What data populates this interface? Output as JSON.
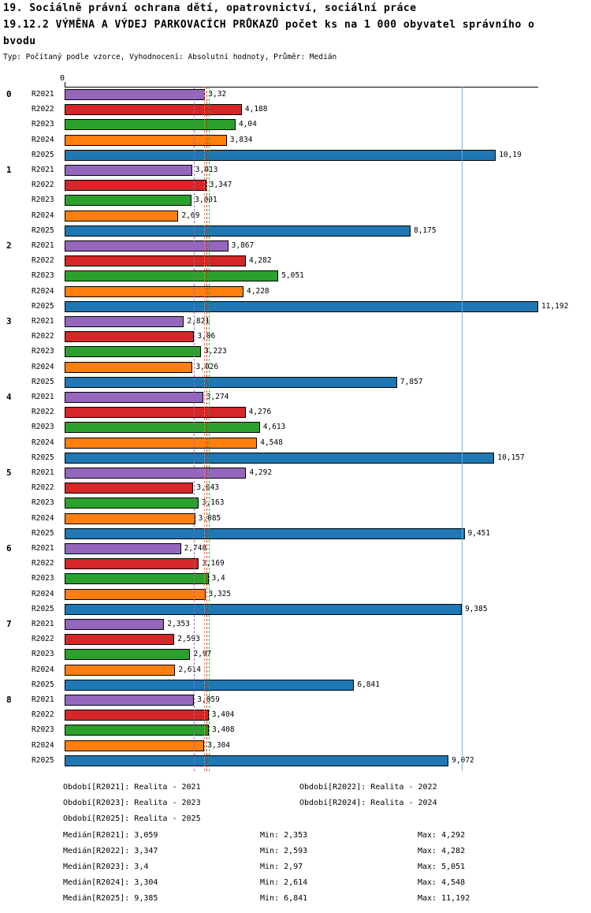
{
  "header": {
    "line1": "19. Sociálně právní ochrana dětí, opatrovnictví, sociální práce",
    "line2": "19.12.2 VÝMĚNA A VÝDEJ PARKOVACÍCH PRŮKAZŮ počet ks na 1 000 obyvatel správního o",
    "line3": "bvodu",
    "meta": "Typ: Počítaný podle vzorce, Vyhodnocení: Absolutní hodnoty, Průměr: Medián"
  },
  "chart_data": {
    "type": "bar",
    "orientation": "horizontal",
    "xlim": [
      0,
      11.192
    ],
    "x_axis": {
      "origin_label": "0"
    },
    "series": [
      "R2021",
      "R2022",
      "R2023",
      "R2024",
      "R2025"
    ],
    "colors": {
      "R2021": "#9467bd",
      "R2022": "#d62728",
      "R2023": "#2ca02c",
      "R2024": "#ff7f0e",
      "R2025": "#1f77b4"
    },
    "groups": [
      {
        "category": "0",
        "bars": [
          {
            "series": "R2021",
            "value": 3.32,
            "label": "3,32"
          },
          {
            "series": "R2022",
            "value": 4.188,
            "label": "4,188"
          },
          {
            "series": "R2023",
            "value": 4.04,
            "label": "4,04"
          },
          {
            "series": "R2024",
            "value": 3.834,
            "label": "3,834"
          },
          {
            "series": "R2025",
            "value": 10.19,
            "label": "10,19"
          }
        ]
      },
      {
        "category": "1",
        "bars": [
          {
            "series": "R2021",
            "value": 3.013,
            "label": "3,013"
          },
          {
            "series": "R2022",
            "value": 3.347,
            "label": "3,347"
          },
          {
            "series": "R2023",
            "value": 3.001,
            "label": "3,001"
          },
          {
            "series": "R2024",
            "value": 2.69,
            "label": "2,69"
          },
          {
            "series": "R2025",
            "value": 8.175,
            "label": "8,175"
          }
        ]
      },
      {
        "category": "2",
        "bars": [
          {
            "series": "R2021",
            "value": 3.867,
            "label": "3,867"
          },
          {
            "series": "R2022",
            "value": 4.282,
            "label": "4,282"
          },
          {
            "series": "R2023",
            "value": 5.051,
            "label": "5,051"
          },
          {
            "series": "R2024",
            "value": 4.228,
            "label": "4,228"
          },
          {
            "series": "R2025",
            "value": 11.192,
            "label": "11,192"
          }
        ]
      },
      {
        "category": "3",
        "bars": [
          {
            "series": "R2021",
            "value": 2.821,
            "label": "2,821"
          },
          {
            "series": "R2022",
            "value": 3.06,
            "label": "3,06"
          },
          {
            "series": "R2023",
            "value": 3.223,
            "label": "3,223"
          },
          {
            "series": "R2024",
            "value": 3.026,
            "label": "3,026"
          },
          {
            "series": "R2025",
            "value": 7.857,
            "label": "7,857"
          }
        ]
      },
      {
        "category": "4",
        "bars": [
          {
            "series": "R2021",
            "value": 3.274,
            "label": "3,274"
          },
          {
            "series": "R2022",
            "value": 4.276,
            "label": "4,276"
          },
          {
            "series": "R2023",
            "value": 4.613,
            "label": "4,613"
          },
          {
            "series": "R2024",
            "value": 4.548,
            "label": "4,548"
          },
          {
            "series": "R2025",
            "value": 10.157,
            "label": "10,157"
          }
        ]
      },
      {
        "category": "5",
        "bars": [
          {
            "series": "R2021",
            "value": 4.292,
            "label": "4,292"
          },
          {
            "series": "R2022",
            "value": 3.043,
            "label": "3,043"
          },
          {
            "series": "R2023",
            "value": 3.163,
            "label": "3,163"
          },
          {
            "series": "R2024",
            "value": 3.085,
            "label": "3,085"
          },
          {
            "series": "R2025",
            "value": 9.451,
            "label": "9,451"
          }
        ]
      },
      {
        "category": "6",
        "bars": [
          {
            "series": "R2021",
            "value": 2.748,
            "label": "2,748"
          },
          {
            "series": "R2022",
            "value": 3.169,
            "label": "3,169"
          },
          {
            "series": "R2023",
            "value": 3.4,
            "label": "3,4"
          },
          {
            "series": "R2024",
            "value": 3.325,
            "label": "3,325"
          },
          {
            "series": "R2025",
            "value": 9.385,
            "label": "9,385"
          }
        ]
      },
      {
        "category": "7",
        "bars": [
          {
            "series": "R2021",
            "value": 2.353,
            "label": "2,353"
          },
          {
            "series": "R2022",
            "value": 2.593,
            "label": "2,593"
          },
          {
            "series": "R2023",
            "value": 2.97,
            "label": "2,97"
          },
          {
            "series": "R2024",
            "value": 2.614,
            "label": "2,614"
          },
          {
            "series": "R2025",
            "value": 6.841,
            "label": "6,841"
          }
        ]
      },
      {
        "category": "8",
        "bars": [
          {
            "series": "R2021",
            "value": 3.059,
            "label": "3,059"
          },
          {
            "series": "R2022",
            "value": 3.404,
            "label": "3,404"
          },
          {
            "series": "R2023",
            "value": 3.408,
            "label": "3,408"
          },
          {
            "series": "R2024",
            "value": 3.304,
            "label": "3,304"
          },
          {
            "series": "R2025",
            "value": 9.072,
            "label": "9,072"
          }
        ]
      }
    ],
    "medians": [
      {
        "series": "R2021",
        "value": 3.059,
        "color": "#9467bd",
        "style": "dashed"
      },
      {
        "series": "R2022",
        "value": 3.347,
        "color": "#d62728",
        "style": "dashed"
      },
      {
        "series": "R2023",
        "value": 3.4,
        "color": "#2ca02c",
        "style": "dashed"
      },
      {
        "series": "R2024",
        "value": 3.304,
        "color": "#ff7f0e",
        "style": "dashed"
      },
      {
        "series": "R2025",
        "value": 9.385,
        "color": "#6baed6",
        "style": "solid"
      }
    ]
  },
  "legend": {
    "items": [
      {
        "label": "Období[R2021]:",
        "value": "Realita - 2021"
      },
      {
        "label": "Období[R2022]:",
        "value": "Realita - 2022"
      },
      {
        "label": "Období[R2023]:",
        "value": "Realita - 2023"
      },
      {
        "label": "Období[R2024]:",
        "value": "Realita - 2024"
      },
      {
        "label": "Období[R2025]:",
        "value": "Realita - 2025"
      }
    ]
  },
  "stats": [
    {
      "median": "Medián[R2021]: 3,059",
      "min": "Min: 2,353",
      "max": "Max: 4,292"
    },
    {
      "median": "Medián[R2022]: 3,347",
      "min": "Min: 2,593",
      "max": "Max: 4,282"
    },
    {
      "median": "Medián[R2023]: 3,4",
      "min": "Min: 2,97",
      "max": "Max: 5,051"
    },
    {
      "median": "Medián[R2024]: 3,304",
      "min": "Min: 2,614",
      "max": "Max: 4,548"
    },
    {
      "median": "Medián[R2025]: 9,385",
      "min": "Min: 6,841",
      "max": "Max: 11,192"
    }
  ]
}
